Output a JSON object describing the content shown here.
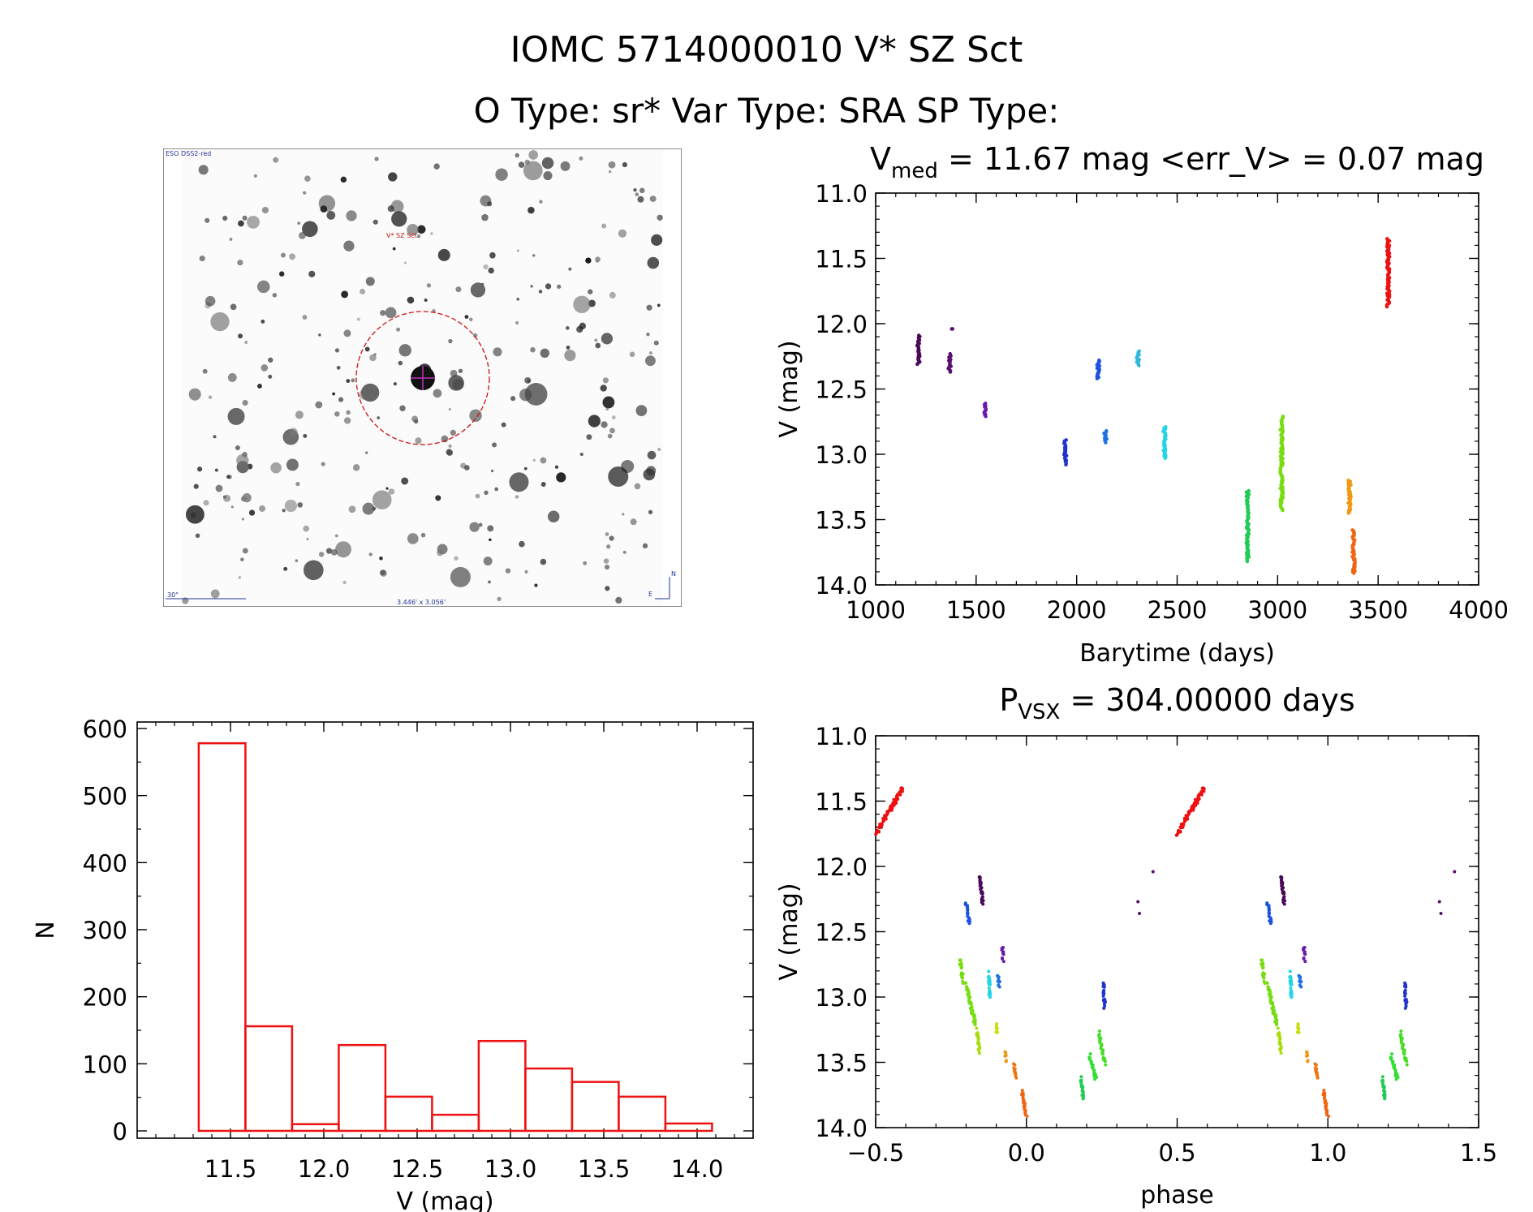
{
  "header": {
    "title_line1": "IOMC 5714000010   V* SZ Sct",
    "title_line2": "O Type: sr*  Var Type: SRA  SP Type:"
  },
  "image_panel": {
    "survey_label": "ESO DSS2-red",
    "target_label": "V* SZ Sct",
    "scale_label": "30\"",
    "size_label": "3.446' x 3.056'",
    "north_label": "N",
    "east_label": "E"
  },
  "colors": {
    "hist": "#ee1111",
    "ring": "#cc1111",
    "label_blue": "#223399",
    "magenta": "#bb33bb"
  },
  "chart_data": [
    {
      "type": "scatter",
      "name": "light-curve",
      "title_main": "V",
      "title_sub": "med",
      "title_rest": " = 11.67 mag <err_V> = 0.07 mag",
      "xlabel": "Barytime (days)",
      "ylabel": "V (mag)",
      "xlim": [
        1000,
        4000
      ],
      "ylim": [
        14.0,
        11.0
      ],
      "xticks": [
        1000,
        1500,
        2000,
        2500,
        3000,
        3500,
        4000
      ],
      "xtick_labels": [
        "1000",
        "1500",
        "2000",
        "2500",
        "3000",
        "3500",
        "4000"
      ],
      "yticks": [
        11.0,
        11.5,
        12.0,
        12.5,
        13.0,
        13.5,
        14.0
      ],
      "ytick_labels": [
        "11.0",
        "11.5",
        "12.0",
        "12.5",
        "13.0",
        "13.5",
        "14.0"
      ],
      "segments": [
        {
          "t": 1213,
          "v_start": 12.09,
          "v_end": 12.31,
          "color": "#4a0858"
        },
        {
          "t": 1368,
          "v_start": 12.23,
          "v_end": 12.37,
          "color": "#5a1070"
        },
        {
          "t": 1380,
          "v_start": 12.04,
          "v_end": 12.04,
          "color": "#5a1070"
        },
        {
          "t": 1543,
          "v_start": 12.61,
          "v_end": 12.71,
          "color": "#6a1aa8"
        },
        {
          "t": 1944,
          "v_start": 12.89,
          "v_end": 13.08,
          "color": "#2233cc"
        },
        {
          "t": 2107,
          "v_start": 12.28,
          "v_end": 12.42,
          "color": "#1d52e0"
        },
        {
          "t": 2143,
          "v_start": 12.82,
          "v_end": 12.91,
          "color": "#1d72e0"
        },
        {
          "t": 2306,
          "v_start": 12.21,
          "v_end": 12.32,
          "color": "#2fb8dd"
        },
        {
          "t": 2437,
          "v_start": 12.79,
          "v_end": 13.03,
          "color": "#22d4e6"
        },
        {
          "t": 2850,
          "v_start": 13.28,
          "v_end": 13.82,
          "color": "#22cc55"
        },
        {
          "t": 3020,
          "v_start": 12.71,
          "v_end": 13.43,
          "color": "#77dd11"
        },
        {
          "t": 3358,
          "v_start": 13.2,
          "v_end": 13.45,
          "color": "#ee9911"
        },
        {
          "t": 3378,
          "v_start": 13.58,
          "v_end": 13.91,
          "color": "#ee6611"
        },
        {
          "t": 3550,
          "v_start": 11.35,
          "v_end": 11.87,
          "color": "#ee1111"
        }
      ]
    },
    {
      "type": "bar",
      "name": "histogram",
      "xlabel": "V (mag)",
      "ylabel": "N",
      "xlim": [
        11.0,
        14.3
      ],
      "ylim": [
        0,
        600
      ],
      "xticks": [
        11.5,
        12.0,
        12.5,
        13.0,
        13.5,
        14.0
      ],
      "xtick_labels": [
        "11.5",
        "12.0",
        "12.5",
        "13.0",
        "13.5",
        "14.0"
      ],
      "yticks": [
        0,
        100,
        200,
        300,
        400,
        500,
        600
      ],
      "ytick_labels": [
        "0",
        "100",
        "200",
        "300",
        "400",
        "500",
        "600"
      ],
      "bin_edges": [
        11.33,
        11.58,
        11.83,
        12.08,
        12.33,
        12.58,
        12.83,
        13.08,
        13.33,
        13.58,
        13.83,
        14.08
      ],
      "counts": [
        578,
        156,
        10,
        128,
        51,
        24,
        134,
        93,
        73,
        51,
        11
      ]
    },
    {
      "type": "scatter",
      "name": "phased-curve",
      "title_main": "P",
      "title_sub": "VSX",
      "title_rest": " = 304.00000 days",
      "xlabel": "phase",
      "ylabel": "V (mag)",
      "xlim": [
        -0.5,
        1.5
      ],
      "ylim": [
        14.0,
        11.0
      ],
      "xticks": [
        -0.5,
        0.0,
        0.5,
        1.0,
        1.5
      ],
      "xtick_labels": [
        "−0.5",
        "0.0",
        "0.5",
        "1.0",
        "1.5"
      ],
      "yticks": [
        11.0,
        11.5,
        12.0,
        12.5,
        13.0,
        13.5,
        14.0
      ],
      "ytick_labels": [
        "11.0",
        "11.5",
        "12.0",
        "12.5",
        "13.0",
        "13.5",
        "14.0"
      ],
      "segments": [
        {
          "p0": -0.5,
          "p1": -0.41,
          "v0": 11.75,
          "v1": 11.4,
          "color": "#ee1111"
        },
        {
          "p0": -0.2,
          "p1": -0.19,
          "v0": 12.28,
          "v1": 12.43,
          "color": "#1d52e0"
        },
        {
          "p0": -0.155,
          "p1": -0.145,
          "v0": 12.08,
          "v1": 12.28,
          "color": "#4a0858"
        },
        {
          "p0": -0.22,
          "p1": -0.21,
          "v0": 12.72,
          "v1": 12.88,
          "color": "#77dd11"
        },
        {
          "p0": -0.2,
          "p1": -0.17,
          "v0": 12.9,
          "v1": 13.2,
          "color": "#77dd11"
        },
        {
          "p0": -0.165,
          "p1": -0.155,
          "v0": 13.25,
          "v1": 13.42,
          "color": "#aadd11"
        },
        {
          "p0": -0.125,
          "p1": -0.12,
          "v0": 12.82,
          "v1": 13.02,
          "color": "#22d4e6"
        },
        {
          "p0": -0.095,
          "p1": -0.09,
          "v0": 12.82,
          "v1": 12.91,
          "color": "#1d72e0"
        },
        {
          "p0": -0.08,
          "p1": -0.078,
          "v0": 12.61,
          "v1": 12.71,
          "color": "#6a1aa8"
        },
        {
          "p0": -0.1,
          "p1": -0.098,
          "v0": 13.2,
          "v1": 13.28,
          "color": "#ccdd11"
        },
        {
          "p0": -0.07,
          "p1": -0.068,
          "v0": 13.42,
          "v1": 13.48,
          "color": "#ee9911"
        },
        {
          "p0": -0.04,
          "p1": -0.035,
          "v0": 13.52,
          "v1": 13.62,
          "color": "#ee7711"
        },
        {
          "p0": -0.015,
          "p1": 0.0,
          "v0": 13.72,
          "v1": 13.91,
          "color": "#ee6611"
        },
        {
          "p0": 0.18,
          "p1": 0.19,
          "v0": 13.62,
          "v1": 13.78,
          "color": "#22cc55"
        },
        {
          "p0": 0.21,
          "p1": 0.23,
          "v0": 13.45,
          "v1": 13.62,
          "color": "#33dd33"
        },
        {
          "p0": 0.24,
          "p1": 0.26,
          "v0": 13.28,
          "v1": 13.5,
          "color": "#44dd22"
        },
        {
          "p0": 0.255,
          "p1": 0.26,
          "v0": 12.89,
          "v1": 13.08,
          "color": "#2233cc"
        }
      ],
      "points": [
        {
          "p": 0.37,
          "v": 12.27,
          "color": "#5a1070"
        },
        {
          "p": 0.375,
          "v": 12.36,
          "color": "#5a1070"
        },
        {
          "p": 0.42,
          "v": 12.04,
          "color": "#5a1070"
        }
      ]
    }
  ]
}
